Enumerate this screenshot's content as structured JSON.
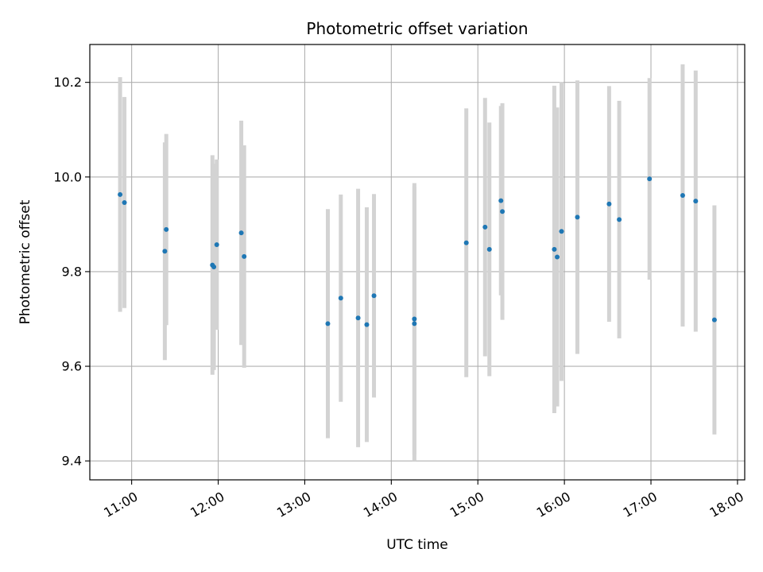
{
  "chart_data": {
    "type": "scatter",
    "title": "Photometric offset variation",
    "xlabel": "UTC time",
    "ylabel": "Photometric offset",
    "x_unit": "time of day (HH:MM, UTC)",
    "xlim": [
      "10:31",
      "18:05"
    ],
    "ylim": [
      9.36,
      10.28
    ],
    "x_ticks": [
      "11:00",
      "12:00",
      "13:00",
      "14:00",
      "15:00",
      "16:00",
      "17:00",
      "18:00"
    ],
    "y_ticks": [
      9.4,
      9.6,
      9.8,
      10.0,
      10.2
    ],
    "y_tick_labels": [
      "9.4",
      "9.6",
      "9.8",
      "10.0",
      "10.2"
    ],
    "grid": true,
    "colors": {
      "point": "#1f77b4",
      "errorbar": "#d3d3d3",
      "grid": "#b0b0b0"
    },
    "points": [
      {
        "x": "10:52",
        "y": 9.963,
        "yerr": 0.248
      },
      {
        "x": "10:55",
        "y": 9.946,
        "yerr": 0.223
      },
      {
        "x": "11:23",
        "y": 9.843,
        "yerr": 0.23
      },
      {
        "x": "11:24",
        "y": 9.889,
        "yerr": 0.202
      },
      {
        "x": "11:56",
        "y": 9.814,
        "yerr": 0.232
      },
      {
        "x": "11:57",
        "y": 9.81,
        "yerr": 0.218
      },
      {
        "x": "11:59",
        "y": 9.857,
        "yerr": 0.18
      },
      {
        "x": "12:16",
        "y": 9.882,
        "yerr": 0.237
      },
      {
        "x": "12:18",
        "y": 9.832,
        "yerr": 0.235
      },
      {
        "x": "13:16",
        "y": 9.69,
        "yerr": 0.242
      },
      {
        "x": "13:25",
        "y": 9.744,
        "yerr": 0.219
      },
      {
        "x": "13:37",
        "y": 9.702,
        "yerr": 0.273
      },
      {
        "x": "13:43",
        "y": 9.688,
        "yerr": 0.248
      },
      {
        "x": "13:48",
        "y": 9.749,
        "yerr": 0.215
      },
      {
        "x": "14:16",
        "y": 9.7,
        "yerr": 0.287
      },
      {
        "x": "14:16",
        "y": 9.69,
        "yerr": 0.29
      },
      {
        "x": "14:52",
        "y": 9.861,
        "yerr": 0.284
      },
      {
        "x": "15:05",
        "y": 9.894,
        "yerr": 0.273
      },
      {
        "x": "15:08",
        "y": 9.847,
        "yerr": 0.268
      },
      {
        "x": "15:16",
        "y": 9.95,
        "yerr": 0.2
      },
      {
        "x": "15:17",
        "y": 9.927,
        "yerr": 0.229
      },
      {
        "x": "15:53",
        "y": 9.847,
        "yerr": 0.346
      },
      {
        "x": "15:55",
        "y": 9.831,
        "yerr": 0.316
      },
      {
        "x": "15:58",
        "y": 9.885,
        "yerr": 0.316
      },
      {
        "x": "16:09",
        "y": 9.915,
        "yerr": 0.289
      },
      {
        "x": "16:31",
        "y": 9.943,
        "yerr": 0.249
      },
      {
        "x": "16:38",
        "y": 9.91,
        "yerr": 0.251
      },
      {
        "x": "16:59",
        "y": 9.996,
        "yerr": 0.213
      },
      {
        "x": "17:22",
        "y": 9.961,
        "yerr": 0.277
      },
      {
        "x": "17:31",
        "y": 9.949,
        "yerr": 0.276
      },
      {
        "x": "17:44",
        "y": 9.698,
        "yerr": 0.242
      }
    ]
  }
}
